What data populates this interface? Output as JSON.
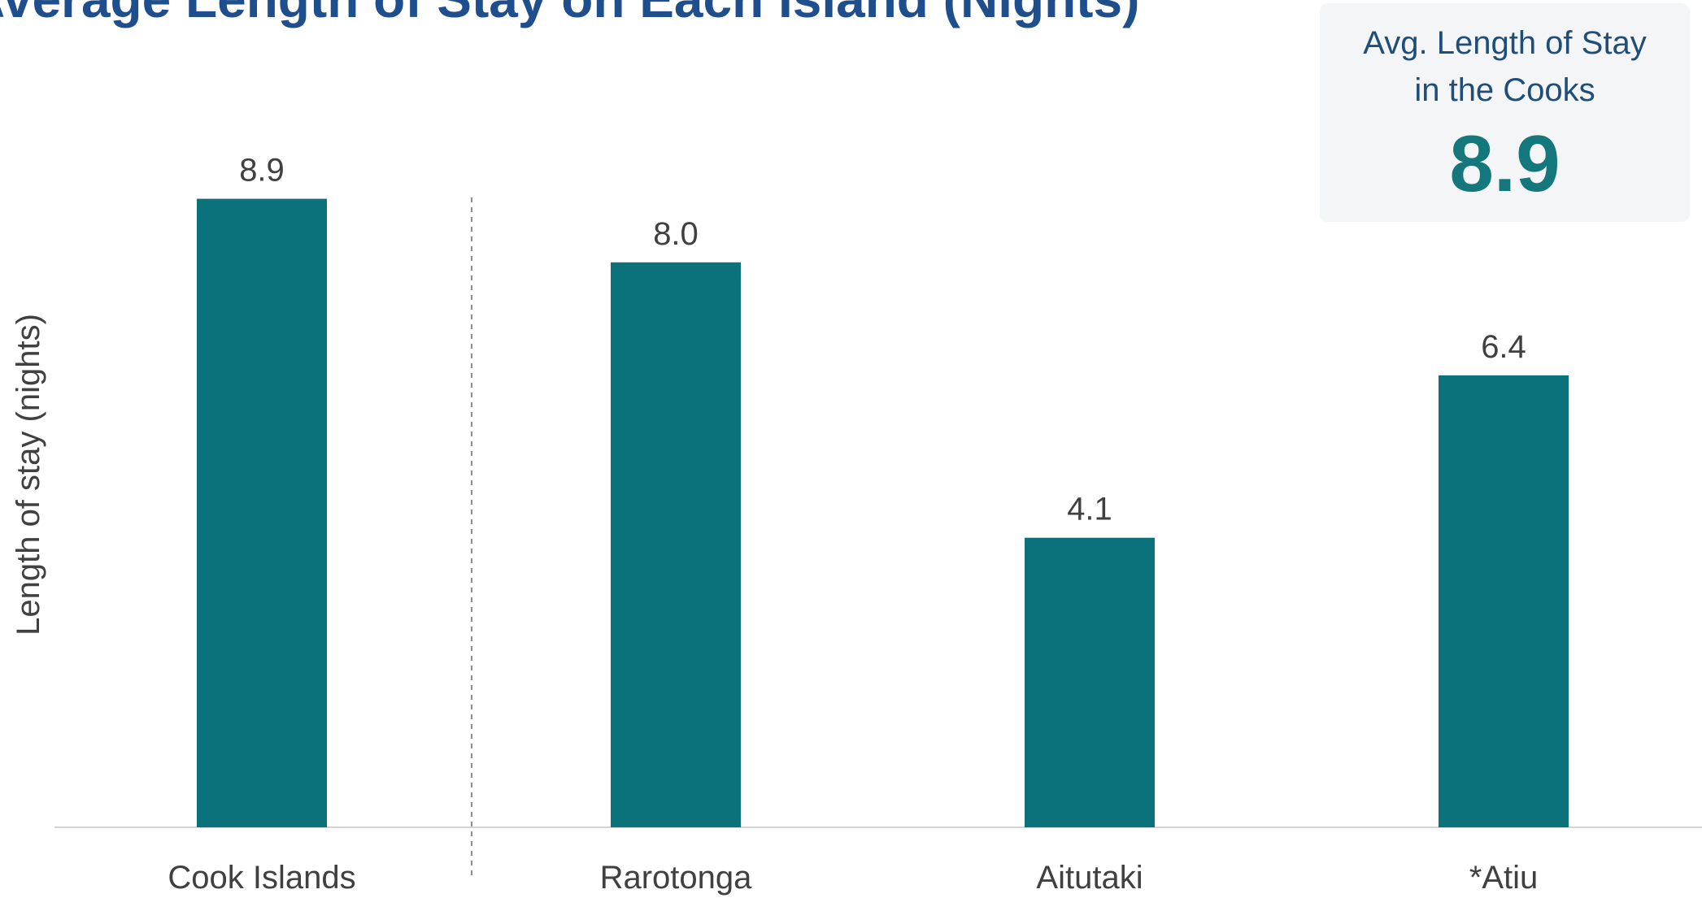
{
  "stat_card": {
    "label": "Avg. Length of Stay\nin the Cooks",
    "value": "8.9"
  },
  "colors": {
    "bar": "#0b727b",
    "title": "#1f4e8c",
    "stat_value": "#13777b",
    "stat_label": "#1f4e79",
    "axis_text": "#404040"
  },
  "chart_data": {
    "type": "bar",
    "title": "Average Length of Stay on Each Island (Nights)",
    "categories": [
      "Cook Islands",
      "Rarotonga",
      "Aitutaki",
      "*Atiu"
    ],
    "values": [
      8.9,
      8.0,
      4.1,
      6.4
    ],
    "data_labels": [
      "8.9",
      "8.0",
      "4.1",
      "6.4"
    ],
    "xlabel": "",
    "ylabel": "Length of stay (nights)",
    "ylim": [
      0,
      10
    ],
    "grid": false,
    "legend": "none"
  }
}
